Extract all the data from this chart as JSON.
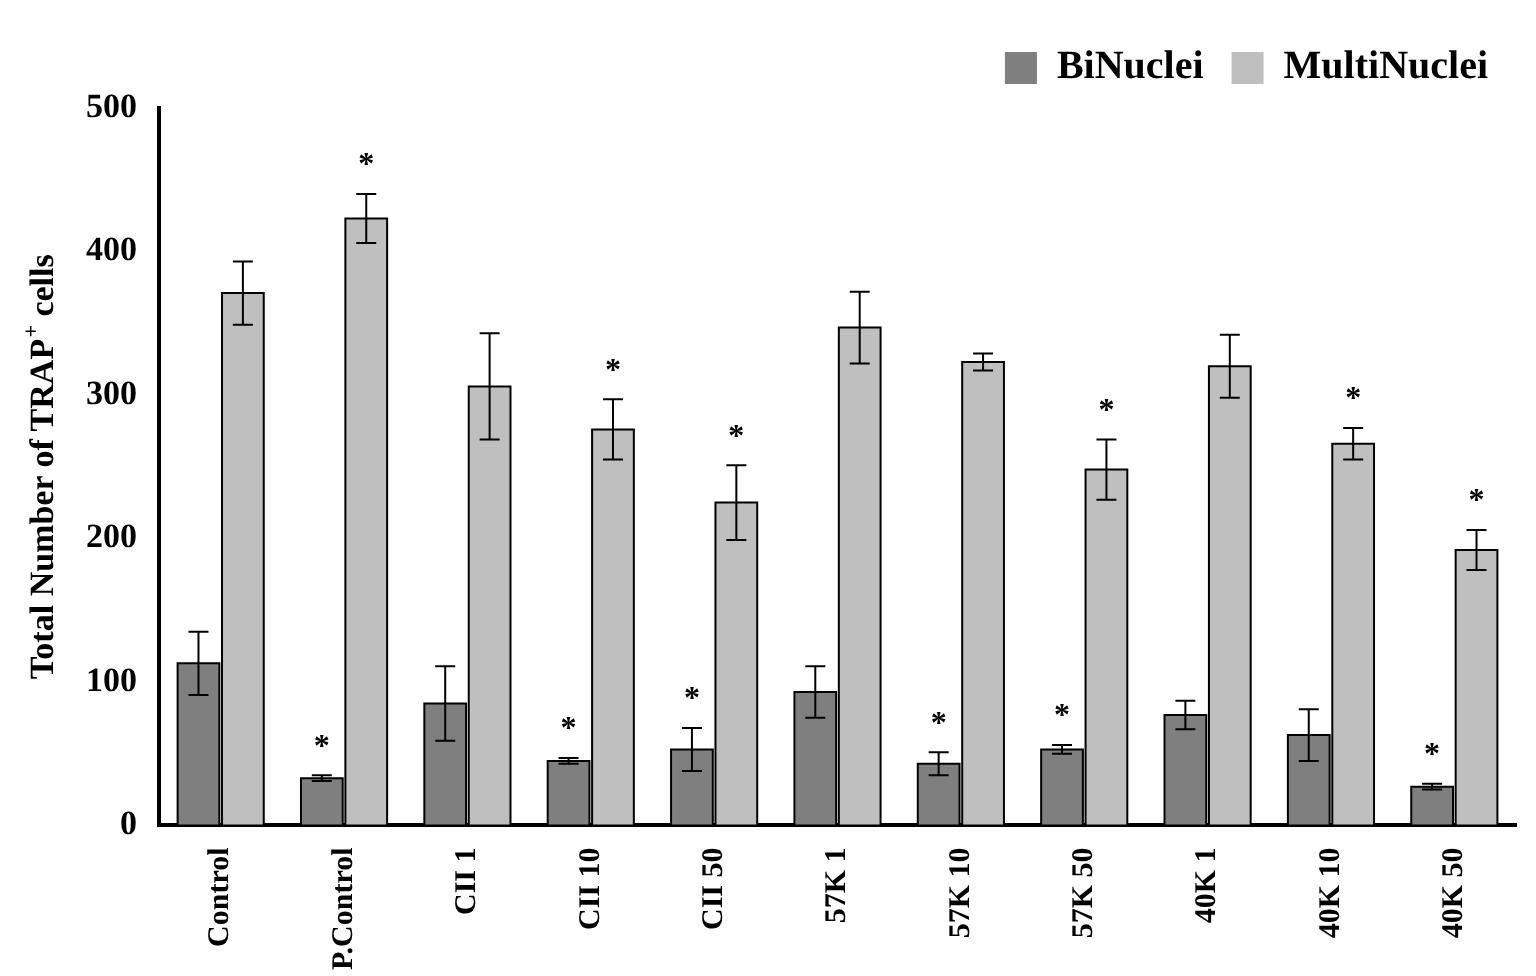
{
  "chart_data": {
    "type": "bar",
    "ylabel": "Total Number of TRAP$^{+}$ cells",
    "categories": [
      "Control",
      "P.Control",
      "CII 1",
      "CII 10",
      "CII 50",
      "57K 1",
      "57K 10",
      "57K 50",
      "40K 1",
      "40K 10",
      "40K 50"
    ],
    "series": [
      {
        "name": "BiNuclei",
        "color": "#7f7f7f",
        "values": [
          113,
          33,
          85,
          45,
          53,
          93,
          43,
          53,
          77,
          63,
          27
        ],
        "errors": [
          22,
          2,
          26,
          2,
          15,
          18,
          8,
          3,
          10,
          18,
          2
        ]
      },
      {
        "name": "MultiNuclei",
        "color": "#bfbfbf",
        "values": [
          371,
          423,
          306,
          276,
          225,
          347,
          323,
          248,
          320,
          266,
          192
        ],
        "errors": [
          22,
          17,
          37,
          21,
          26,
          25,
          6,
          21,
          22,
          11,
          14
        ]
      }
    ],
    "ylim": [
      0,
      500
    ],
    "yticks": [
      0,
      100,
      200,
      300,
      400,
      500
    ],
    "grid": false,
    "legend": "top right",
    "annotations": [
      {
        "text": "*",
        "x": "P.Control",
        "y": 33
      },
      {
        "text": "*",
        "x": "CII 10",
        "y": 45
      },
      {
        "text": "*",
        "x": "CII 50",
        "y": 53
      },
      {
        "text": "*",
        "x": "57K 10",
        "y": 43
      },
      {
        "text": "*",
        "x": "57K 50",
        "y": 53
      },
      {
        "text": "*",
        "x": "40K 50",
        "y": 27
      },
      {
        "text": "*",
        "x": "P.Control",
        "y": 423
      },
      {
        "text": "*",
        "x": "CII 10",
        "y": 276
      },
      {
        "text": "*",
        "x": "CII 50",
        "y": 225
      },
      {
        "text": "*",
        "x": "57K 50",
        "y": 248
      },
      {
        "text": "*",
        "x": "40K 10",
        "y": 266
      },
      {
        "text": "*",
        "x": "40K 50",
        "y": 192
      }
    ]
  }
}
